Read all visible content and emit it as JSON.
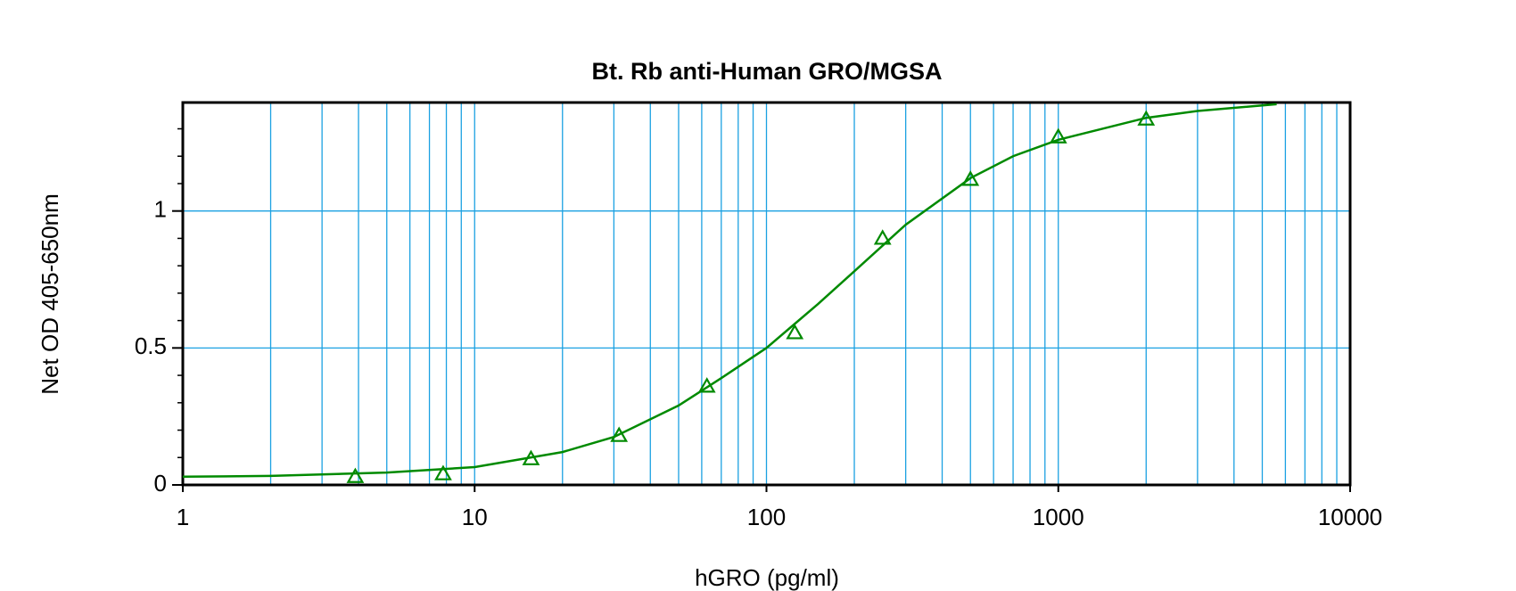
{
  "chart_data": {
    "type": "scatter",
    "title": "Bt. Rb anti-Human GRO/MGSA",
    "x_label": "hGRO (pg/ml)",
    "y_label": "Net OD 405-650nm",
    "x_scale": "log",
    "xlim": [
      1,
      10000
    ],
    "xticks": [
      1,
      10,
      100,
      1000,
      10000
    ],
    "x_minor_ticks": [
      2,
      3,
      4,
      5,
      6,
      7,
      8,
      9,
      20,
      30,
      40,
      50,
      60,
      70,
      80,
      90,
      200,
      300,
      400,
      500,
      600,
      700,
      800,
      900,
      2000,
      3000,
      4000,
      5000,
      6000,
      7000,
      8000,
      9000
    ],
    "ylim": [
      0,
      1.396
    ],
    "yticks": [
      0,
      0.5,
      1
    ],
    "y_minor_ticks": [
      0.1,
      0.2,
      0.3,
      0.4,
      0.6,
      0.7,
      0.8,
      0.9,
      1.1,
      1.2,
      1.3
    ],
    "grid": true,
    "grid_color": "#1ba1e2",
    "series": [
      {
        "marker": "triangle",
        "color": "#008a00",
        "x": [
          3.9,
          7.8,
          15.6,
          31.25,
          62.5,
          125,
          250,
          500,
          1000,
          2000
        ],
        "values": [
          0.03,
          0.04,
          0.095,
          0.18,
          0.36,
          0.555,
          0.9,
          1.115,
          1.27,
          1.335
        ]
      },
      {
        "marker": "line",
        "color": "#008a00",
        "x": [
          1,
          2,
          5,
          10,
          20,
          30,
          50,
          70,
          100,
          150,
          200,
          300,
          500,
          700,
          1000,
          2000,
          3000,
          5600
        ],
        "values": [
          0.03,
          0.033,
          0.045,
          0.065,
          0.12,
          0.175,
          0.29,
          0.39,
          0.5,
          0.66,
          0.78,
          0.95,
          1.12,
          1.2,
          1.26,
          1.34,
          1.365,
          1.39
        ]
      }
    ]
  }
}
